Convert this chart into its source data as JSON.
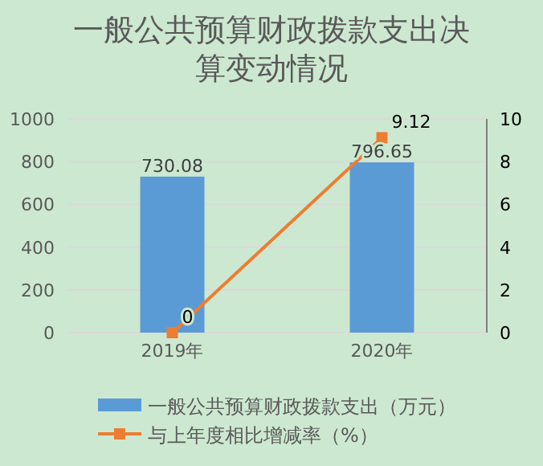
{
  "chart_data": {
    "type": "bar",
    "title": "一般公共预算财政拨款支出决算变动情况",
    "categories": [
      "2019年",
      "2020年"
    ],
    "series": [
      {
        "name": "一般公共预算财政拨款支出（万元）",
        "color": "#5b9bd5",
        "values": [
          730.08,
          796.65
        ]
      },
      {
        "name": "与上年度相比增减率（%）",
        "type": "line",
        "axis": "y2",
        "color": "#ed7d31",
        "marker": "square",
        "values": [
          0,
          9.12
        ]
      }
    ],
    "ylim": [
      0,
      1000
    ],
    "yticks": [
      0,
      200,
      400,
      600,
      800,
      1000
    ],
    "y2lim": [
      0,
      10
    ],
    "y2ticks": [
      0,
      2,
      4,
      6,
      8,
      10
    ],
    "grid": "y",
    "legend": "bottom",
    "data_labels": true
  }
}
